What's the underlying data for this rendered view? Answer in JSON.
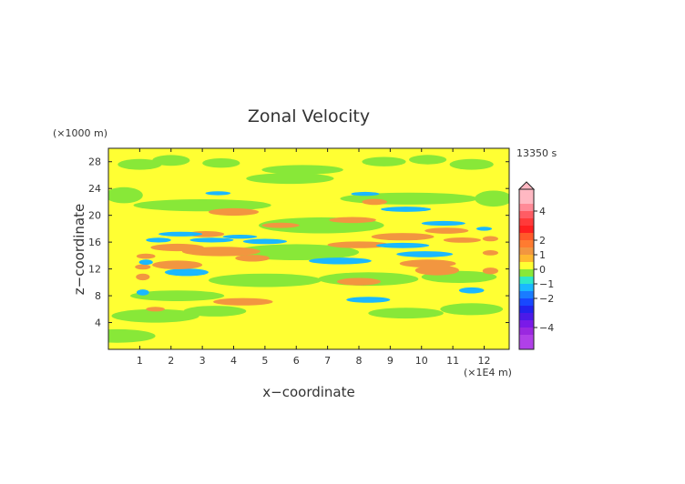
{
  "chart_data": {
    "type": "heatmap",
    "title": "Zonal Velocity",
    "xlabel": "x−coordinate",
    "ylabel": "z−coordinate",
    "x_unit": "(×1E4 m)",
    "y_unit": "(×1000 m)",
    "time_label": "13350 s",
    "xlim": [
      0,
      12.8
    ],
    "ylim": [
      0,
      30
    ],
    "x_ticks": [
      "1",
      "2",
      "3",
      "4",
      "5",
      "6",
      "7",
      "8",
      "9",
      "10",
      "11",
      "12"
    ],
    "y_ticks": [
      "4",
      "8",
      "12",
      "16",
      "20",
      "24",
      "28"
    ],
    "colorbar": {
      "labels": [
        "4",
        "2",
        "1",
        "0",
        "−1",
        "−2",
        "−4"
      ],
      "levels": [
        {
          "min": 4.5,
          "max": 5.5,
          "color": "#ffb8c2"
        },
        {
          "min": 4,
          "max": 4.5,
          "color": "#ff8a97"
        },
        {
          "min": 3.5,
          "max": 4,
          "color": "#ff5c64"
        },
        {
          "min": 3,
          "max": 3.5,
          "color": "#ff3a3a"
        },
        {
          "min": 2.5,
          "max": 3,
          "color": "#ff2020"
        },
        {
          "min": 2,
          "max": 2.5,
          "color": "#ff5a2a"
        },
        {
          "min": 1.5,
          "max": 2,
          "color": "#ff7b30"
        },
        {
          "min": 1,
          "max": 1.5,
          "color": "#f29640"
        },
        {
          "min": 0.5,
          "max": 1,
          "color": "#ffb830"
        },
        {
          "min": 0,
          "max": 0.5,
          "color": "#ffff33"
        },
        {
          "min": -0.5,
          "max": 0,
          "color": "#88e838"
        },
        {
          "min": -1,
          "max": -0.5,
          "color": "#2ee8c8"
        },
        {
          "min": -1.5,
          "max": -1,
          "color": "#1ab8ff"
        },
        {
          "min": -2,
          "max": -1.5,
          "color": "#1a7cff"
        },
        {
          "min": -2.5,
          "max": -2,
          "color": "#1848ff"
        },
        {
          "min": -3,
          "max": -2.5,
          "color": "#2222ee"
        },
        {
          "min": -3.5,
          "max": -3,
          "color": "#4b1ae8"
        },
        {
          "min": -4,
          "max": -3.5,
          "color": "#7a1ae8"
        },
        {
          "min": -4.5,
          "max": -4,
          "color": "#9a28e0"
        },
        {
          "min": -5.5,
          "max": -4.5,
          "color": "#b040e8"
        }
      ]
    },
    "background_value": 0.2,
    "features": [
      {
        "x": 0.3,
        "z": 2.0,
        "rx": 1.2,
        "rz": 1.0,
        "v": -0.3
      },
      {
        "x": 1.5,
        "z": 5.0,
        "rx": 1.4,
        "rz": 1.0,
        "v": -0.3
      },
      {
        "x": 3.4,
        "z": 5.7,
        "rx": 1.0,
        "rz": 0.8,
        "v": -0.3
      },
      {
        "x": 9.5,
        "z": 5.4,
        "rx": 1.2,
        "rz": 0.8,
        "v": -0.3
      },
      {
        "x": 11.6,
        "z": 6.0,
        "rx": 1.0,
        "rz": 0.9,
        "v": -0.3
      },
      {
        "x": 2.2,
        "z": 8.0,
        "rx": 1.5,
        "rz": 0.8,
        "v": -0.3
      },
      {
        "x": 5.0,
        "z": 10.3,
        "rx": 1.8,
        "rz": 1.0,
        "v": -0.3
      },
      {
        "x": 8.3,
        "z": 10.5,
        "rx": 1.6,
        "rz": 1.0,
        "v": -0.3
      },
      {
        "x": 11.2,
        "z": 10.8,
        "rx": 1.2,
        "rz": 0.9,
        "v": -0.3
      },
      {
        "x": 6.0,
        "z": 14.5,
        "rx": 2.0,
        "rz": 1.2,
        "v": -0.3
      },
      {
        "x": 6.8,
        "z": 18.5,
        "rx": 2.0,
        "rz": 1.2,
        "v": -0.3
      },
      {
        "x": 3.0,
        "z": 21.5,
        "rx": 2.2,
        "rz": 0.9,
        "v": -0.3
      },
      {
        "x": 9.6,
        "z": 22.5,
        "rx": 2.2,
        "rz": 0.9,
        "v": -0.3
      },
      {
        "x": 5.8,
        "z": 25.5,
        "rx": 1.4,
        "rz": 0.8,
        "v": -0.3
      },
      {
        "x": 6.2,
        "z": 26.8,
        "rx": 1.3,
        "rz": 0.7,
        "v": -0.3
      },
      {
        "x": 1.0,
        "z": 27.6,
        "rx": 0.7,
        "rz": 0.8,
        "v": -0.3
      },
      {
        "x": 2.0,
        "z": 28.2,
        "rx": 0.6,
        "rz": 0.8,
        "v": -0.3
      },
      {
        "x": 3.6,
        "z": 27.8,
        "rx": 0.6,
        "rz": 0.7,
        "v": -0.3
      },
      {
        "x": 8.8,
        "z": 28.0,
        "rx": 0.7,
        "rz": 0.7,
        "v": -0.3
      },
      {
        "x": 10.2,
        "z": 28.3,
        "rx": 0.6,
        "rz": 0.7,
        "v": -0.3
      },
      {
        "x": 11.6,
        "z": 27.6,
        "rx": 0.7,
        "rz": 0.8,
        "v": -0.3
      },
      {
        "x": 0.5,
        "z": 23.0,
        "rx": 0.6,
        "rz": 1.2,
        "v": -0.3
      },
      {
        "x": 12.3,
        "z": 22.5,
        "rx": 0.6,
        "rz": 1.2,
        "v": -0.3
      },
      {
        "x": 4.3,
        "z": 7.1,
        "rx": 0.95,
        "rz": 0.55,
        "v": 1.3
      },
      {
        "x": 1.5,
        "z": 6.0,
        "rx": 0.3,
        "rz": 0.35,
        "v": 1.0
      },
      {
        "x": 8.0,
        "z": 10.1,
        "rx": 0.7,
        "rz": 0.55,
        "v": 1.3
      },
      {
        "x": 10.5,
        "z": 11.8,
        "rx": 0.7,
        "rz": 0.75,
        "v": 1.3
      },
      {
        "x": 1.1,
        "z": 10.8,
        "rx": 0.22,
        "rz": 0.5,
        "v": 1.0
      },
      {
        "x": 1.1,
        "z": 12.3,
        "rx": 0.25,
        "rz": 0.4,
        "v": 1.0
      },
      {
        "x": 1.2,
        "z": 13.9,
        "rx": 0.3,
        "rz": 0.4,
        "v": 1.0
      },
      {
        "x": 2.2,
        "z": 12.6,
        "rx": 0.8,
        "rz": 0.65,
        "v": 1.2
      },
      {
        "x": 3.6,
        "z": 14.6,
        "rx": 1.25,
        "rz": 0.7,
        "v": 1.4
      },
      {
        "x": 2.2,
        "z": 15.2,
        "rx": 0.85,
        "rz": 0.55,
        "v": 1.2
      },
      {
        "x": 4.6,
        "z": 13.6,
        "rx": 0.55,
        "rz": 0.5,
        "v": 1.2
      },
      {
        "x": 3.1,
        "z": 17.2,
        "rx": 0.6,
        "rz": 0.45,
        "v": 1.2
      },
      {
        "x": 4.0,
        "z": 20.5,
        "rx": 0.8,
        "rz": 0.55,
        "v": 1.3
      },
      {
        "x": 5.5,
        "z": 18.5,
        "rx": 0.6,
        "rz": 0.4,
        "v": 1.2
      },
      {
        "x": 8.0,
        "z": 15.6,
        "rx": 1.0,
        "rz": 0.5,
        "v": 1.3
      },
      {
        "x": 10.2,
        "z": 12.8,
        "rx": 0.9,
        "rz": 0.6,
        "v": 1.4
      },
      {
        "x": 9.4,
        "z": 16.8,
        "rx": 1.0,
        "rz": 0.55,
        "v": 1.3
      },
      {
        "x": 11.3,
        "z": 16.3,
        "rx": 0.6,
        "rz": 0.4,
        "v": 1.2
      },
      {
        "x": 7.8,
        "z": 19.3,
        "rx": 0.75,
        "rz": 0.45,
        "v": 1.2
      },
      {
        "x": 10.8,
        "z": 17.7,
        "rx": 0.7,
        "rz": 0.45,
        "v": 1.2
      },
      {
        "x": 8.5,
        "z": 22.0,
        "rx": 0.4,
        "rz": 0.45,
        "v": 1.0
      },
      {
        "x": 12.2,
        "z": 11.7,
        "rx": 0.25,
        "rz": 0.5,
        "v": 1.0
      },
      {
        "x": 12.2,
        "z": 14.4,
        "rx": 0.25,
        "rz": 0.4,
        "v": 1.0
      },
      {
        "x": 12.2,
        "z": 16.5,
        "rx": 0.25,
        "rz": 0.4,
        "v": 1.0
      },
      {
        "x": 1.1,
        "z": 8.5,
        "rx": 0.2,
        "rz": 0.45,
        "v": -1.2
      },
      {
        "x": 1.2,
        "z": 13.0,
        "rx": 0.22,
        "rz": 0.4,
        "v": -1.2
      },
      {
        "x": 2.5,
        "z": 11.5,
        "rx": 0.7,
        "rz": 0.55,
        "v": -1.1
      },
      {
        "x": 1.6,
        "z": 16.3,
        "rx": 0.4,
        "rz": 0.35,
        "v": -1.2
      },
      {
        "x": 2.3,
        "z": 17.2,
        "rx": 0.7,
        "rz": 0.35,
        "v": -1.3
      },
      {
        "x": 3.3,
        "z": 16.3,
        "rx": 0.7,
        "rz": 0.35,
        "v": -1.2
      },
      {
        "x": 5.0,
        "z": 16.1,
        "rx": 0.7,
        "rz": 0.4,
        "v": -1.2
      },
      {
        "x": 4.2,
        "z": 16.8,
        "rx": 0.55,
        "rz": 0.3,
        "v": -1.3
      },
      {
        "x": 3.5,
        "z": 23.3,
        "rx": 0.4,
        "rz": 0.3,
        "v": -1.2
      },
      {
        "x": 7.4,
        "z": 13.2,
        "rx": 1.0,
        "rz": 0.5,
        "v": -1.1
      },
      {
        "x": 8.3,
        "z": 7.4,
        "rx": 0.7,
        "rz": 0.45,
        "v": -1.1
      },
      {
        "x": 9.4,
        "z": 15.5,
        "rx": 0.85,
        "rz": 0.4,
        "v": -1.3
      },
      {
        "x": 10.1,
        "z": 14.2,
        "rx": 0.9,
        "rz": 0.45,
        "v": -1.2
      },
      {
        "x": 9.5,
        "z": 20.9,
        "rx": 0.8,
        "rz": 0.4,
        "v": -1.2
      },
      {
        "x": 8.2,
        "z": 23.2,
        "rx": 0.45,
        "rz": 0.3,
        "v": -1.2
      },
      {
        "x": 11.6,
        "z": 8.8,
        "rx": 0.4,
        "rz": 0.45,
        "v": -1.1
      },
      {
        "x": 10.7,
        "z": 18.8,
        "rx": 0.7,
        "rz": 0.35,
        "v": -1.2
      },
      {
        "x": 12.0,
        "z": 18.0,
        "rx": 0.25,
        "rz": 0.3,
        "v": -1.1
      },
      {
        "x": 5.0,
        "z": 14.0,
        "rx": 2.6,
        "rz": 1.4,
        "v": 0.15
      },
      {
        "x": 8.0,
        "z": 13.5,
        "rx": 2.6,
        "rz": 1.6,
        "v": 0.15
      },
      {
        "x": 6.3,
        "z": 21.0,
        "rx": 3.0,
        "rz": 1.0,
        "v": 0.2
      }
    ]
  }
}
